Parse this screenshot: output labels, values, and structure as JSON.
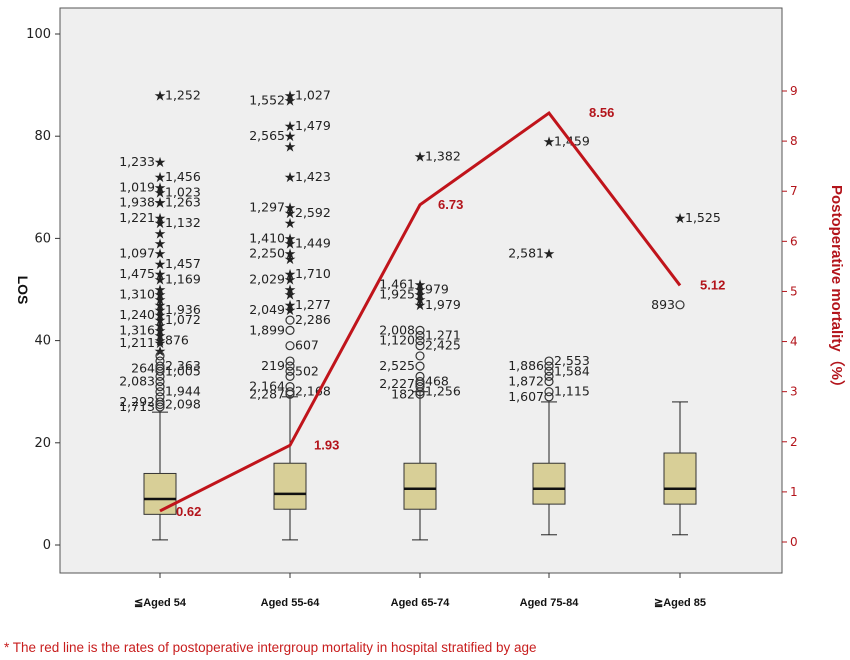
{
  "chart_data": {
    "type": "box",
    "categories": [
      "≦Aged 54",
      "Aged 55-64",
      "Aged 65-74",
      "Aged 75-84",
      "≧Aged 85"
    ],
    "ylabel": "LOS",
    "ylim": [
      0,
      100
    ],
    "yticks": [
      0,
      20,
      40,
      60,
      80,
      100
    ],
    "y2label": "Postoperative mortality（%）",
    "y2lim": [
      0,
      9
    ],
    "y2ticks": [
      0,
      1,
      2,
      3,
      4,
      5,
      6,
      7,
      8,
      9
    ],
    "boxes": [
      {
        "min": 1,
        "q1": 6,
        "median": 9,
        "q3": 14,
        "max": 26
      },
      {
        "min": 1,
        "q1": 7,
        "median": 10,
        "q3": 16,
        "max": 29
      },
      {
        "min": 1,
        "q1": 7,
        "median": 11,
        "q3": 16,
        "max": 30
      },
      {
        "min": 2,
        "q1": 8,
        "median": 11,
        "q3": 16,
        "max": 28
      },
      {
        "min": 2,
        "q1": 8,
        "median": 11,
        "q3": 18,
        "max": 28
      }
    ],
    "mortality_series": {
      "color": "#c0141b",
      "values": [
        0.62,
        1.93,
        6.73,
        8.56,
        5.12
      ]
    },
    "outliers": [
      {
        "cat": 0,
        "y": 88,
        "kind": "extreme",
        "label": "1,252"
      },
      {
        "cat": 0,
        "y": 75,
        "kind": "extreme",
        "label": "1,233"
      },
      {
        "cat": 0,
        "y": 72,
        "kind": "extreme",
        "label": "1,456"
      },
      {
        "cat": 0,
        "y": 70,
        "kind": "extreme",
        "label": "1,019"
      },
      {
        "cat": 0,
        "y": 69,
        "kind": "extreme",
        "label": "1,023"
      },
      {
        "cat": 0,
        "y": 67,
        "kind": "extreme",
        "label": "1,938"
      },
      {
        "cat": 0,
        "y": 67,
        "kind": "extreme",
        "label": "1,263"
      },
      {
        "cat": 0,
        "y": 64,
        "kind": "extreme",
        "label": "1,221"
      },
      {
        "cat": 0,
        "y": 63,
        "kind": "extreme",
        "label": "1,132"
      },
      {
        "cat": 0,
        "y": 61,
        "kind": "extreme",
        "label": ""
      },
      {
        "cat": 0,
        "y": 59,
        "kind": "extreme",
        "label": ""
      },
      {
        "cat": 0,
        "y": 57,
        "kind": "extreme",
        "label": "1,097"
      },
      {
        "cat": 0,
        "y": 55,
        "kind": "extreme",
        "label": "1,457"
      },
      {
        "cat": 0,
        "y": 53,
        "kind": "extreme",
        "label": "1,475"
      },
      {
        "cat": 0,
        "y": 52,
        "kind": "extreme",
        "label": "1,169"
      },
      {
        "cat": 0,
        "y": 50,
        "kind": "extreme",
        "label": ""
      },
      {
        "cat": 0,
        "y": 49,
        "kind": "extreme",
        "label": "1,310"
      },
      {
        "cat": 0,
        "y": 48,
        "kind": "extreme",
        "label": ""
      },
      {
        "cat": 0,
        "y": 47,
        "kind": "extreme",
        "label": ""
      },
      {
        "cat": 0,
        "y": 46,
        "kind": "extreme",
        "label": "1,936"
      },
      {
        "cat": 0,
        "y": 45,
        "kind": "extreme",
        "label": "1,240"
      },
      {
        "cat": 0,
        "y": 44,
        "kind": "extreme",
        "label": "1,072"
      },
      {
        "cat": 0,
        "y": 43,
        "kind": "extreme",
        "label": ""
      },
      {
        "cat": 0,
        "y": 42,
        "kind": "extreme",
        "label": "1,316"
      },
      {
        "cat": 0,
        "y": 41,
        "kind": "extreme",
        "label": ""
      },
      {
        "cat": 0,
        "y": 40,
        "kind": "extreme",
        "label": "876"
      },
      {
        "cat": 0,
        "y": 39.5,
        "kind": "extreme",
        "label": "1,211"
      },
      {
        "cat": 0,
        "y": 38,
        "kind": "extreme",
        "label": ""
      },
      {
        "cat": 0,
        "y": 37,
        "kind": "outlier",
        "label": ""
      },
      {
        "cat": 0,
        "y": 36,
        "kind": "outlier",
        "label": ""
      },
      {
        "cat": 0,
        "y": 35,
        "kind": "outlier",
        "label": "2,363"
      },
      {
        "cat": 0,
        "y": 34.5,
        "kind": "outlier",
        "label": "264"
      },
      {
        "cat": 0,
        "y": 34,
        "kind": "outlier",
        "label": "1,005"
      },
      {
        "cat": 0,
        "y": 33,
        "kind": "outlier",
        "label": ""
      },
      {
        "cat": 0,
        "y": 32,
        "kind": "outlier",
        "label": "2,083"
      },
      {
        "cat": 0,
        "y": 31,
        "kind": "outlier",
        "label": ""
      },
      {
        "cat": 0,
        "y": 30,
        "kind": "outlier",
        "label": "1,944"
      },
      {
        "cat": 0,
        "y": 29,
        "kind": "outlier",
        "label": ""
      },
      {
        "cat": 0,
        "y": 28,
        "kind": "outlier",
        "label": "2,292"
      },
      {
        "cat": 0,
        "y": 27.5,
        "kind": "outlier",
        "label": "2,098"
      },
      {
        "cat": 0,
        "y": 27,
        "kind": "outlier",
        "label": "1,713"
      },
      {
        "cat": 1,
        "y": 88,
        "kind": "extreme",
        "label": "1,027"
      },
      {
        "cat": 1,
        "y": 87,
        "kind": "extreme",
        "label": "1,552"
      },
      {
        "cat": 1,
        "y": 82,
        "kind": "extreme",
        "label": "1,479"
      },
      {
        "cat": 1,
        "y": 80,
        "kind": "extreme",
        "label": "2,565"
      },
      {
        "cat": 1,
        "y": 78,
        "kind": "extreme",
        "label": ""
      },
      {
        "cat": 1,
        "y": 72,
        "kind": "extreme",
        "label": "1,423"
      },
      {
        "cat": 1,
        "y": 66,
        "kind": "extreme",
        "label": "1,297"
      },
      {
        "cat": 1,
        "y": 65,
        "kind": "extreme",
        "label": "2,592"
      },
      {
        "cat": 1,
        "y": 63,
        "kind": "extreme",
        "label": ""
      },
      {
        "cat": 1,
        "y": 60,
        "kind": "extreme",
        "label": "1,410"
      },
      {
        "cat": 1,
        "y": 59,
        "kind": "extreme",
        "label": "1,449"
      },
      {
        "cat": 1,
        "y": 57,
        "kind": "extreme",
        "label": "2,250"
      },
      {
        "cat": 1,
        "y": 56,
        "kind": "extreme",
        "label": ""
      },
      {
        "cat": 1,
        "y": 53,
        "kind": "extreme",
        "label": "1,710"
      },
      {
        "cat": 1,
        "y": 52,
        "kind": "extreme",
        "label": "2,029"
      },
      {
        "cat": 1,
        "y": 50,
        "kind": "extreme",
        "label": ""
      },
      {
        "cat": 1,
        "y": 49,
        "kind": "extreme",
        "label": ""
      },
      {
        "cat": 1,
        "y": 47,
        "kind": "extreme",
        "label": "1,277"
      },
      {
        "cat": 1,
        "y": 46,
        "kind": "extreme",
        "label": "2,049"
      },
      {
        "cat": 1,
        "y": 44,
        "kind": "outlier",
        "label": "2,286"
      },
      {
        "cat": 1,
        "y": 42,
        "kind": "outlier",
        "label": "1,899"
      },
      {
        "cat": 1,
        "y": 39,
        "kind": "outlier",
        "label": "607"
      },
      {
        "cat": 1,
        "y": 36,
        "kind": "outlier",
        "label": ""
      },
      {
        "cat": 1,
        "y": 35,
        "kind": "outlier",
        "label": "219"
      },
      {
        "cat": 1,
        "y": 34,
        "kind": "outlier",
        "label": "502"
      },
      {
        "cat": 1,
        "y": 33,
        "kind": "outlier",
        "label": ""
      },
      {
        "cat": 1,
        "y": 31,
        "kind": "outlier",
        "label": "2,164"
      },
      {
        "cat": 1,
        "y": 30,
        "kind": "outlier",
        "label": "2,168"
      },
      {
        "cat": 1,
        "y": 29.5,
        "kind": "outlier",
        "label": "2,287"
      },
      {
        "cat": 2,
        "y": 76,
        "kind": "extreme",
        "label": "1,382"
      },
      {
        "cat": 2,
        "y": 51,
        "kind": "extreme",
        "label": "1,461"
      },
      {
        "cat": 2,
        "y": 50,
        "kind": "extreme",
        "label": "979"
      },
      {
        "cat": 2,
        "y": 49,
        "kind": "extreme",
        "label": "1,925"
      },
      {
        "cat": 2,
        "y": 48,
        "kind": "extreme",
        "label": ""
      },
      {
        "cat": 2,
        "y": 47,
        "kind": "extreme",
        "label": "1,979"
      },
      {
        "cat": 2,
        "y": 42,
        "kind": "outlier",
        "label": "2,008"
      },
      {
        "cat": 2,
        "y": 41,
        "kind": "outlier",
        "label": "1,271"
      },
      {
        "cat": 2,
        "y": 40,
        "kind": "outlier",
        "label": "1,120"
      },
      {
        "cat": 2,
        "y": 39,
        "kind": "outlier",
        "label": "2,425"
      },
      {
        "cat": 2,
        "y": 37,
        "kind": "outlier",
        "label": ""
      },
      {
        "cat": 2,
        "y": 35,
        "kind": "outlier",
        "label": "2,525"
      },
      {
        "cat": 2,
        "y": 33,
        "kind": "outlier",
        "label": ""
      },
      {
        "cat": 2,
        "y": 32,
        "kind": "outlier",
        "label": "468"
      },
      {
        "cat": 2,
        "y": 31.5,
        "kind": "outlier",
        "label": "2,227"
      },
      {
        "cat": 2,
        "y": 31,
        "kind": "outlier",
        "label": ""
      },
      {
        "cat": 2,
        "y": 30,
        "kind": "outlier",
        "label": "1,256"
      },
      {
        "cat": 2,
        "y": 29.5,
        "kind": "outlier",
        "label": "182"
      },
      {
        "cat": 3,
        "y": 79,
        "kind": "extreme",
        "label": "1,459"
      },
      {
        "cat": 3,
        "y": 57,
        "kind": "extreme",
        "label": "2,581"
      },
      {
        "cat": 3,
        "y": 36,
        "kind": "outlier",
        "label": "2,553"
      },
      {
        "cat": 3,
        "y": 35,
        "kind": "outlier",
        "label": "1,886"
      },
      {
        "cat": 3,
        "y": 34,
        "kind": "outlier",
        "label": "1,584"
      },
      {
        "cat": 3,
        "y": 33,
        "kind": "outlier",
        "label": ""
      },
      {
        "cat": 3,
        "y": 32,
        "kind": "outlier",
        "label": "1,872"
      },
      {
        "cat": 3,
        "y": 30,
        "kind": "outlier",
        "label": "1,115"
      },
      {
        "cat": 3,
        "y": 29,
        "kind": "outlier",
        "label": "1,607"
      },
      {
        "cat": 4,
        "y": 64,
        "kind": "extreme",
        "label": "1,525"
      },
      {
        "cat": 4,
        "y": 47,
        "kind": "outlier",
        "label": "893"
      }
    ],
    "footnote": "* The red line is the rates of postoperative intergroup mortality in hospital stratified by age"
  }
}
